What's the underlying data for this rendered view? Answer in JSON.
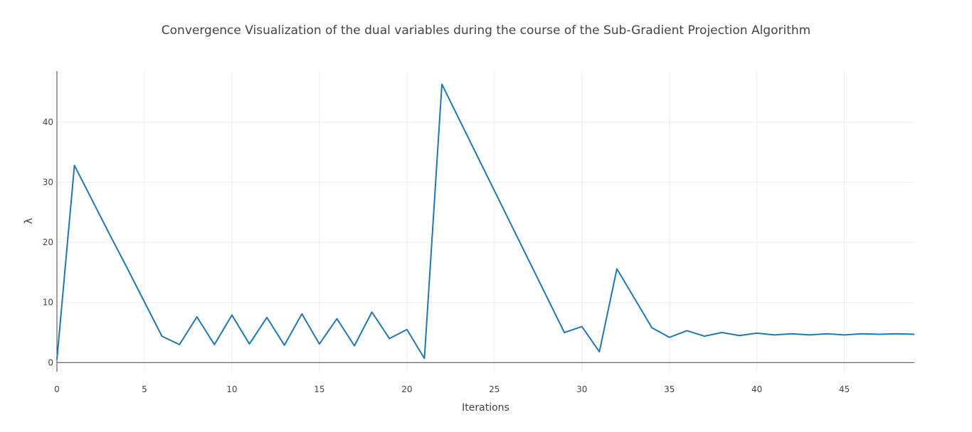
{
  "chart_data": {
    "type": "line",
    "title": "Convergence Visualization of the dual variables during the course of the Sub-Gradient Projection Algorithm",
    "xlabel": "Iterations",
    "ylabel": "λ",
    "xlim": [
      0,
      49
    ],
    "ylim": [
      -1.5,
      48.5
    ],
    "x_ticks": [
      0,
      5,
      10,
      15,
      20,
      25,
      30,
      35,
      40,
      45
    ],
    "y_ticks": [
      0,
      10,
      20,
      30,
      40
    ],
    "grid": true,
    "legend": "none",
    "series": [
      {
        "color": "#1f77b4",
        "x": [
          0,
          1,
          2,
          3,
          4,
          5,
          6,
          7,
          8,
          9,
          10,
          11,
          12,
          13,
          14,
          15,
          16,
          17,
          18,
          19,
          20,
          21,
          22,
          23,
          24,
          25,
          26,
          27,
          28,
          29,
          30,
          31,
          32,
          33,
          34,
          35,
          36,
          37,
          38,
          39,
          40,
          41,
          42,
          43,
          44,
          45,
          46,
          47,
          48,
          49
        ],
        "y": [
          0.5,
          32.8,
          27.1,
          21.4,
          15.8,
          10.1,
          4.4,
          3.0,
          7.6,
          3.0,
          7.9,
          3.1,
          7.5,
          2.9,
          8.1,
          3.1,
          7.3,
          2.8,
          8.4,
          4.0,
          5.5,
          0.7,
          46.3,
          40.4,
          34.5,
          28.6,
          22.7,
          16.8,
          10.9,
          5.0,
          6.0,
          1.8,
          15.6,
          10.7,
          5.8,
          4.2,
          5.3,
          4.4,
          5.0,
          4.5,
          4.9,
          4.6,
          4.8,
          4.6,
          4.8,
          4.6,
          4.8,
          4.7,
          4.8,
          4.7
        ]
      }
    ]
  }
}
